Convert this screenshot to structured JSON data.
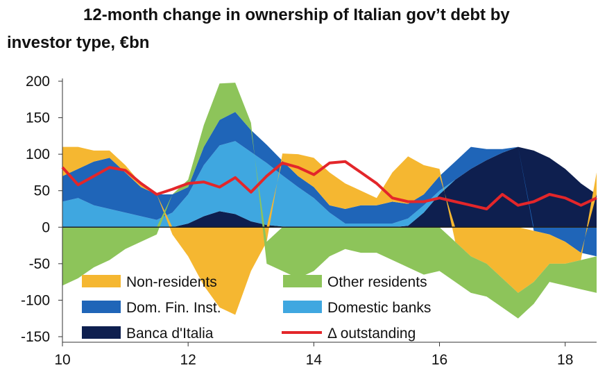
{
  "chart_data": {
    "type": "area",
    "title_line1": "12-month change in ownership of Italian gov’t debt by",
    "title_line2": "investor type, €bn",
    "xlim": [
      10,
      18.5
    ],
    "ylim": [
      -150,
      200
    ],
    "xticks": [
      10,
      12,
      14,
      16,
      18
    ],
    "yticks": [
      200,
      150,
      100,
      50,
      0,
      -50,
      -100,
      -150
    ],
    "legend": [
      "Non-residents",
      "Other residents",
      "Dom. Fin. Inst.",
      "Domestic banks",
      "Banca d'Italia",
      "Δ outstanding"
    ],
    "x": [
      10,
      10.25,
      10.5,
      10.75,
      11,
      11.25,
      11.5,
      11.75,
      12,
      12.25,
      12.5,
      12.75,
      13,
      13.25,
      13.5,
      13.75,
      14,
      14.25,
      14.5,
      14.75,
      15,
      15.25,
      15.5,
      15.75,
      16,
      16.25,
      16.5,
      16.75,
      17,
      17.25,
      17.5,
      17.75,
      18,
      18.25,
      18.5
    ],
    "series": [
      {
        "name": "Banca d'Italia",
        "color": "#0e1f4f",
        "values": [
          0,
          0,
          0,
          0,
          0,
          0,
          0,
          0,
          5,
          15,
          22,
          18,
          8,
          3,
          1,
          0,
          0,
          0,
          0,
          0,
          0,
          0,
          2,
          20,
          45,
          65,
          80,
          92,
          102,
          110,
          105,
          95,
          80,
          60,
          45
        ]
      },
      {
        "name": "Domestic banks",
        "color": "#3fa7e0",
        "values": [
          35,
          40,
          30,
          25,
          20,
          15,
          10,
          20,
          40,
          70,
          90,
          100,
          95,
          85,
          70,
          55,
          40,
          20,
          5,
          5,
          5,
          5,
          10,
          10,
          5,
          0,
          0,
          0,
          0,
          0,
          0,
          0,
          0,
          0,
          0
        ]
      },
      {
        "name": "Dom. Fin. Inst.",
        "color": "#1f65b8",
        "values": [
          35,
          40,
          60,
          70,
          55,
          40,
          35,
          25,
          10,
          25,
          35,
          40,
          30,
          25,
          20,
          15,
          15,
          10,
          20,
          25,
          25,
          30,
          20,
          15,
          20,
          25,
          30,
          15,
          5,
          0,
          -5,
          -10,
          -20,
          -35,
          -40
        ]
      },
      {
        "name": "Non-residents",
        "color": "#f5b731",
        "values": [
          40,
          30,
          15,
          10,
          10,
          5,
          0,
          -10,
          -40,
          -80,
          -110,
          -120,
          -60,
          -20,
          10,
          30,
          40,
          45,
          35,
          20,
          10,
          40,
          65,
          40,
          10,
          -20,
          -40,
          -50,
          -70,
          -90,
          -70,
          -40,
          -30,
          -10,
          30
        ]
      },
      {
        "name": "Other residents",
        "color": "#8dc45a",
        "values": [
          -80,
          -70,
          -55,
          -45,
          -30,
          -20,
          -10,
          0,
          10,
          30,
          50,
          40,
          10,
          -30,
          -60,
          -70,
          -60,
          -40,
          -30,
          -35,
          -35,
          -45,
          -55,
          -65,
          -60,
          -55,
          -50,
          -45,
          -40,
          -35,
          -30,
          -25,
          -30,
          -40,
          -50
        ]
      }
    ],
    "line": {
      "name": "Δ outstanding",
      "color": "#e3262a",
      "values": [
        82,
        58,
        70,
        82,
        78,
        60,
        45,
        52,
        60,
        62,
        55,
        68,
        48,
        70,
        88,
        82,
        72,
        88,
        90,
        75,
        60,
        40,
        35,
        35,
        40,
        35,
        30,
        25,
        45,
        30,
        35,
        45,
        40,
        30,
        40
      ]
    }
  }
}
